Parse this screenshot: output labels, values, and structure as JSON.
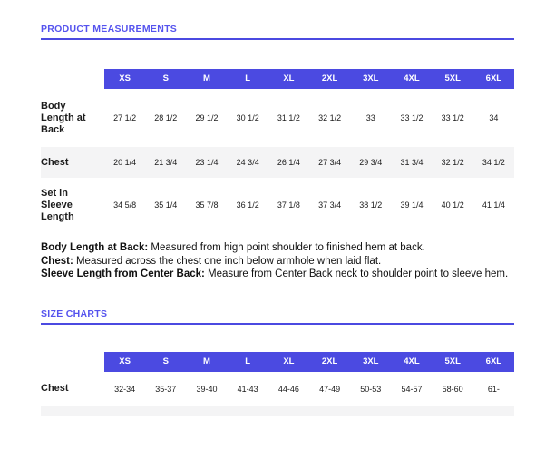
{
  "colors": {
    "accent": "#4b4ae1",
    "header_bg": "#4b4ae1",
    "header_text": "#ffffff",
    "alt_row_bg": "#f4f4f5",
    "heading_text": "#5553ee"
  },
  "product_measurements": {
    "title": "PRODUCT MEASUREMENTS",
    "columns": [
      "XS",
      "S",
      "M",
      "L",
      "XL",
      "2XL",
      "3XL",
      "4XL",
      "5XL",
      "6XL"
    ],
    "rows": [
      {
        "label": "Body Length at Back",
        "values": [
          "27 1/2",
          "28 1/2",
          "29 1/2",
          "30 1/2",
          "31 1/2",
          "32 1/2",
          "33",
          "33 1/2",
          "33 1/2",
          "34"
        ]
      },
      {
        "label": "Chest",
        "values": [
          "20 1/4",
          "21 3/4",
          "23 1/4",
          "24 3/4",
          "26 1/4",
          "27 3/4",
          "29 3/4",
          "31 3/4",
          "32 1/2",
          "34 1/2"
        ]
      },
      {
        "label": "Set in Sleeve Length",
        "values": [
          "34 5/8",
          "35 1/4",
          "35 7/8",
          "36 1/2",
          "37 1/8",
          "37 3/4",
          "38 1/2",
          "39 1/4",
          "40 1/2",
          "41 1/4"
        ]
      }
    ],
    "notes": [
      {
        "lead": "Body Length at Back:",
        "text": " Measured from high point shoulder to finished hem at back."
      },
      {
        "lead": "Chest:",
        "text": " Measured across the chest one inch below armhole when laid flat."
      },
      {
        "lead": "Sleeve Length from Center Back:",
        "text": " Measure from Center Back neck to shoulder point to sleeve hem."
      }
    ]
  },
  "size_charts": {
    "title": "SIZE CHARTS",
    "columns": [
      "XS",
      "S",
      "M",
      "L",
      "XL",
      "2XL",
      "3XL",
      "4XL",
      "5XL",
      "6XL"
    ],
    "rows": [
      {
        "label": "Chest",
        "values": [
          "32-34",
          "35-37",
          "39-40",
          "41-43",
          "44-46",
          "47-49",
          "50-53",
          "54-57",
          "58-60",
          "61-"
        ]
      }
    ]
  }
}
